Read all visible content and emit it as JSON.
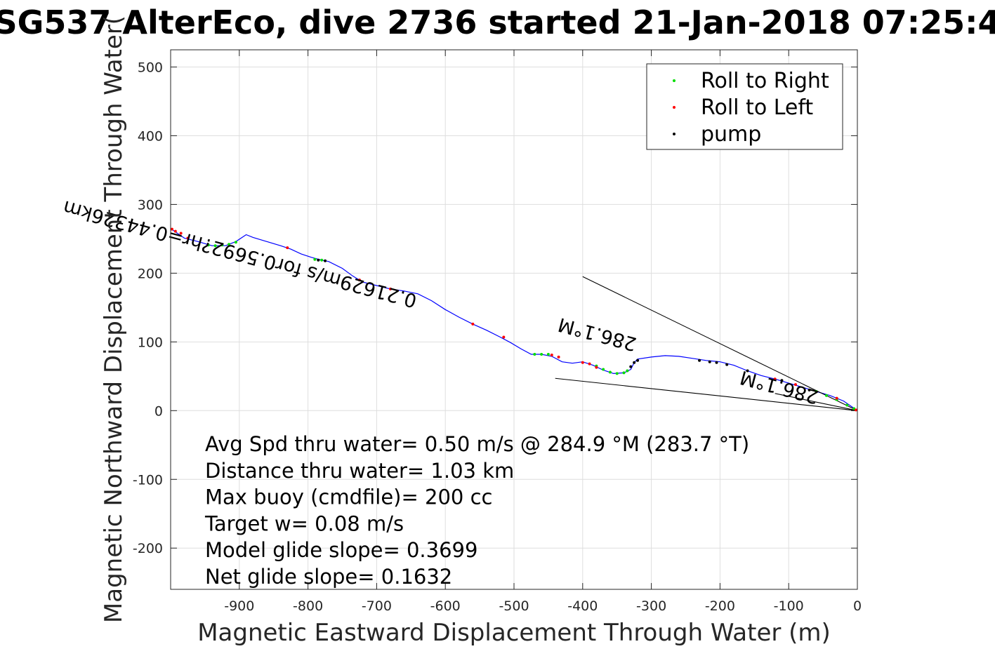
{
  "chart_data": {
    "type": "line",
    "title": "SG537 AlterEco, dive 2736 started 21-Jan-2018 07:25:4",
    "xlabel": "Magnetic Eastward Displacement Through Water (m)",
    "ylabel": "Magnetic Northward Displacement Through Water(",
    "xlim": [
      -1000,
      0
    ],
    "ylim": [
      -260,
      525
    ],
    "xticks": [
      -900,
      -800,
      -700,
      -600,
      -500,
      -400,
      -300,
      -200,
      -100,
      0
    ],
    "yticks": [
      -200,
      -100,
      0,
      100,
      200,
      300,
      400,
      500
    ],
    "grid": true,
    "legend_position": "top-right",
    "legend": [
      {
        "label": "Roll to Right",
        "color": "#00dd00"
      },
      {
        "label": "Roll to Left",
        "color": "#ff0000"
      },
      {
        "label": "pump",
        "color": "#000000"
      }
    ],
    "track_color": "#0000ff",
    "track": {
      "x": [
        -1000,
        -990,
        -980,
        -960,
        -940,
        -920,
        -905,
        -890,
        -880,
        -860,
        -840,
        -825,
        -810,
        -795,
        -780,
        -770,
        -750,
        -735,
        -720,
        -700,
        -680,
        -660,
        -640,
        -620,
        -600,
        -580,
        -560,
        -540,
        -520,
        -505,
        -490,
        -475,
        -460,
        -445,
        -430,
        -415,
        -400,
        -385,
        -370,
        -355,
        -340,
        -330,
        -325,
        -320,
        -300,
        -280,
        -260,
        -240,
        -220,
        -200,
        -180,
        -160,
        -140,
        -120,
        -100,
        -80,
        -60,
        -40,
        -20,
        0
      ],
      "y": [
        265,
        258,
        251,
        246,
        240,
        240,
        246,
        256,
        252,
        246,
        240,
        235,
        228,
        223,
        219,
        217,
        207,
        196,
        187,
        182,
        177,
        174,
        170,
        160,
        147,
        136,
        126,
        117,
        107,
        99,
        90,
        82,
        82,
        79,
        71,
        69,
        71,
        66,
        59,
        54,
        55,
        60,
        70,
        75,
        78,
        80,
        79,
        76,
        73,
        71,
        66,
        58,
        51,
        46,
        40,
        34,
        28,
        22,
        14,
        0
      ]
    },
    "roll_right": [
      [
        -945,
        241
      ],
      [
        -935,
        240
      ],
      [
        -925,
        241
      ],
      [
        -915,
        242
      ],
      [
        -905,
        245
      ],
      [
        -790,
        220
      ],
      [
        -780,
        219
      ],
      [
        -470,
        82
      ],
      [
        -460,
        82
      ],
      [
        -450,
        82
      ],
      [
        -380,
        65
      ],
      [
        -370,
        60
      ],
      [
        -360,
        56
      ],
      [
        -350,
        54
      ],
      [
        -340,
        55
      ],
      [
        -335,
        58
      ],
      [
        -60,
        28
      ],
      [
        -45,
        22
      ],
      [
        -30,
        16
      ],
      [
        -15,
        8
      ],
      [
        -5,
        3
      ]
    ],
    "roll_left": [
      [
        -998,
        264
      ],
      [
        -993,
        261
      ],
      [
        -985,
        258
      ],
      [
        -975,
        251
      ],
      [
        -830,
        237
      ],
      [
        -725,
        190
      ],
      [
        -680,
        177
      ],
      [
        -560,
        126
      ],
      [
        -515,
        107
      ],
      [
        -445,
        81
      ],
      [
        -435,
        78
      ],
      [
        -400,
        70
      ],
      [
        -390,
        68
      ],
      [
        -380,
        63
      ],
      [
        -120,
        46
      ],
      [
        -90,
        38
      ],
      [
        -30,
        18
      ],
      [
        -2,
        1
      ]
    ],
    "pump": [
      [
        -785,
        219
      ],
      [
        -775,
        218
      ],
      [
        -330,
        64
      ],
      [
        -325,
        70
      ],
      [
        -320,
        73
      ],
      [
        -230,
        73
      ],
      [
        -215,
        71
      ],
      [
        -205,
        70
      ],
      [
        -190,
        67
      ],
      [
        -160,
        58
      ],
      [
        -110,
        44
      ],
      [
        -70,
        30
      ]
    ],
    "lines": [
      {
        "x": [
          -400,
          0
        ],
        "y": [
          195,
          0
        ]
      },
      {
        "x": [
          -440,
          0
        ],
        "y": [
          47,
          0
        ]
      },
      {
        "x": [
          -120,
          0
        ],
        "y": [
          25,
          0
        ]
      }
    ],
    "rotated_annotations": [
      {
        "text": "0.21629m/s for0.5692?hr=0.44326km",
        "x": -640,
        "y": 168,
        "angle_deg": 195
      },
      {
        "text": "286.1°M",
        "x": -320,
        "y": 105,
        "angle_deg": 195
      },
      {
        "text": "286.1°M",
        "x": -55,
        "y": 28,
        "angle_deg": 195
      }
    ],
    "stats": [
      "Avg Spd thru water=  0.50 m/s @ 284.9 °M (283.7 °T)",
      "Distance thru water=  1.03 km",
      "Max buoy (cmdfile)= 200 cc",
      "Target w= 0.08 m/s",
      "Model glide slope= 0.3699",
      "Net glide slope= 0.1632"
    ]
  }
}
